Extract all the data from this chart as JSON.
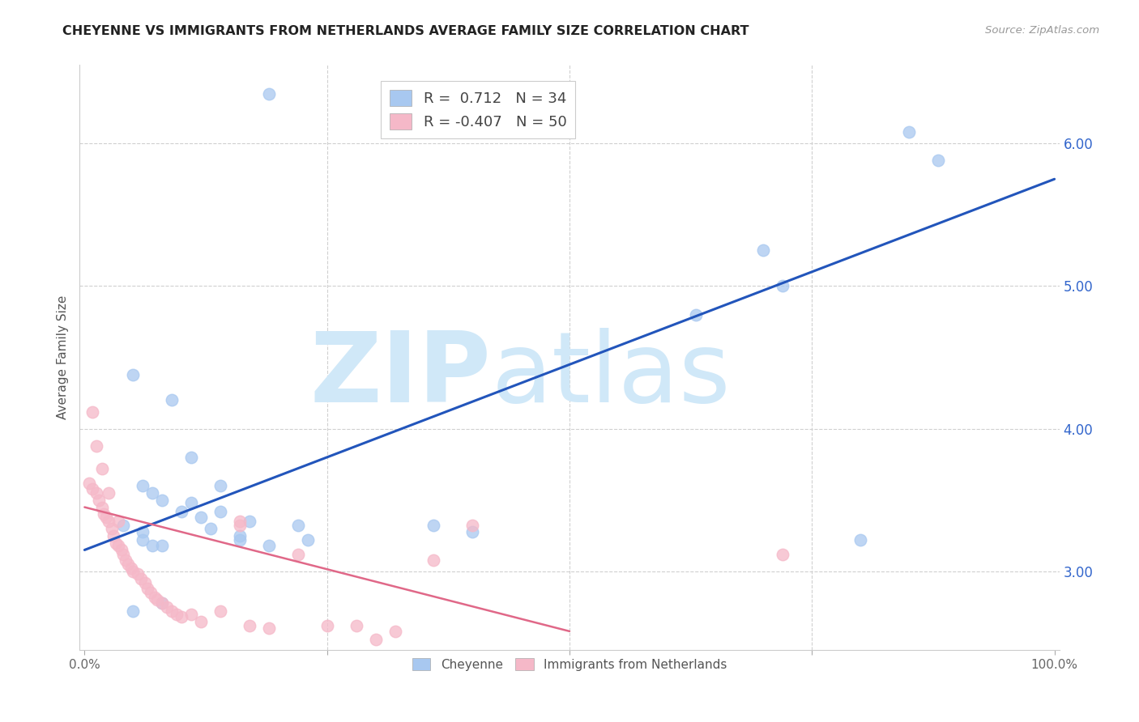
{
  "title": "CHEYENNE VS IMMIGRANTS FROM NETHERLANDS AVERAGE FAMILY SIZE CORRELATION CHART",
  "source": "Source: ZipAtlas.com",
  "ylabel": "Average Family Size",
  "ylabel_right_ticks": [
    3.0,
    4.0,
    5.0,
    6.0
  ],
  "y_min": 2.45,
  "y_max": 6.55,
  "x_min": -0.005,
  "x_max": 1.005,
  "blue_R": 0.712,
  "blue_N": 34,
  "pink_R": -0.407,
  "pink_N": 50,
  "blue_color": "#a8c8f0",
  "blue_line_color": "#2255bb",
  "pink_color": "#f5b8c8",
  "pink_line_color": "#e06888",
  "watermark_zip": "ZIP",
  "watermark_atlas": "atlas",
  "watermark_color": "#d0e8f8",
  "background_color": "#ffffff",
  "blue_line_x0": 0.0,
  "blue_line_y0": 3.15,
  "blue_line_x1": 1.0,
  "blue_line_y1": 5.75,
  "pink_line_x0": 0.0,
  "pink_line_y0": 3.45,
  "pink_line_x1": 0.5,
  "pink_line_y1": 2.58,
  "blue_scatter_x": [
    0.19,
    0.85,
    0.88,
    0.7,
    0.72,
    0.63,
    0.05,
    0.09,
    0.11,
    0.14,
    0.07,
    0.08,
    0.1,
    0.12,
    0.04,
    0.06,
    0.08,
    0.13,
    0.16,
    0.06,
    0.07,
    0.16,
    0.19,
    0.36,
    0.4,
    0.05,
    0.08,
    0.22,
    0.8,
    0.23,
    0.17,
    0.14,
    0.11,
    0.06
  ],
  "blue_scatter_y": [
    6.35,
    6.08,
    5.88,
    5.25,
    5.0,
    4.8,
    4.38,
    4.2,
    3.8,
    3.6,
    3.55,
    3.5,
    3.42,
    3.38,
    3.32,
    3.28,
    3.18,
    3.3,
    3.25,
    3.22,
    3.18,
    3.22,
    3.18,
    3.32,
    3.28,
    2.72,
    2.78,
    3.32,
    3.22,
    3.22,
    3.35,
    3.42,
    3.48,
    3.6
  ],
  "pink_scatter_x": [
    0.005,
    0.008,
    0.012,
    0.015,
    0.018,
    0.02,
    0.022,
    0.025,
    0.028,
    0.03,
    0.032,
    0.035,
    0.038,
    0.04,
    0.042,
    0.045,
    0.048,
    0.05,
    0.055,
    0.058,
    0.062,
    0.065,
    0.068,
    0.072,
    0.075,
    0.08,
    0.085,
    0.09,
    0.095,
    0.1,
    0.11,
    0.12,
    0.14,
    0.16,
    0.17,
    0.19,
    0.22,
    0.25,
    0.28,
    0.32,
    0.36,
    0.4,
    0.72,
    0.008,
    0.012,
    0.018,
    0.025,
    0.035,
    0.3,
    0.16
  ],
  "pink_scatter_y": [
    3.62,
    3.58,
    3.55,
    3.5,
    3.45,
    3.4,
    3.38,
    3.35,
    3.3,
    3.25,
    3.2,
    3.18,
    3.15,
    3.12,
    3.08,
    3.05,
    3.02,
    3.0,
    2.98,
    2.95,
    2.92,
    2.88,
    2.85,
    2.82,
    2.8,
    2.78,
    2.75,
    2.72,
    2.7,
    2.68,
    2.7,
    2.65,
    2.72,
    3.32,
    2.62,
    2.6,
    3.12,
    2.62,
    2.62,
    2.58,
    3.08,
    3.32,
    3.12,
    4.12,
    3.88,
    3.72,
    3.55,
    3.35,
    2.52,
    3.35
  ]
}
